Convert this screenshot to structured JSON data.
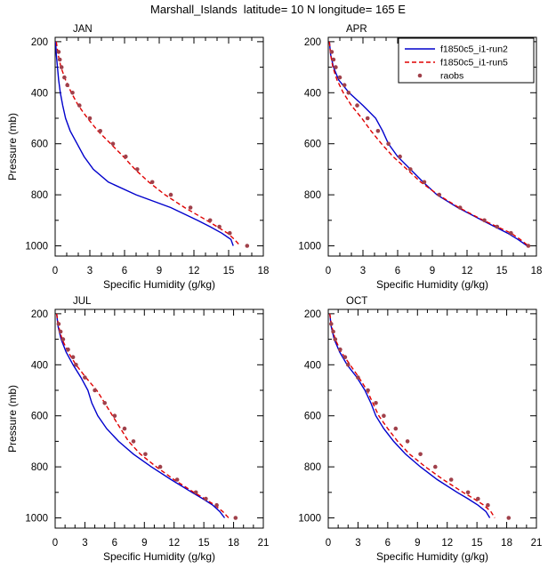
{
  "title": "Marshall_Islands  latitude= 10 N longitude= 165 E",
  "colors": {
    "run2": "#0000cc",
    "run5": "#e00000",
    "raobs": "#a0404a",
    "axis": "#000000"
  },
  "legend": {
    "panel": "APR",
    "entries": [
      {
        "label": "f1850c5_i1-run2",
        "style": "solid",
        "color": "#0000cc"
      },
      {
        "label": "f1850c5_i1-run5",
        "style": "dashed",
        "color": "#e00000"
      },
      {
        "label": "raobs",
        "style": "dots",
        "color": "#a0404a"
      }
    ]
  },
  "chart_data": [
    {
      "type": "line",
      "panel": "JAN",
      "xlabel": "Specific Humidity (g/kg)",
      "ylabel": "Pressure (mb)",
      "xlim": [
        0,
        18
      ],
      "xticks": [
        0,
        3,
        6,
        9,
        12,
        15,
        18
      ],
      "ylim": [
        200,
        1000
      ],
      "yticks": [
        200,
        400,
        600,
        800,
        1000
      ],
      "y_axis": "inverted-pressure",
      "series": [
        {
          "name": "f1850c5_i1-run2",
          "style": "solid",
          "color": "#0000cc",
          "pressure": [
            200,
            250,
            300,
            350,
            400,
            450,
            500,
            550,
            600,
            650,
            700,
            750,
            800,
            850,
            900,
            925,
            950,
            975,
            1000
          ],
          "values": [
            0.05,
            0.1,
            0.2,
            0.3,
            0.45,
            0.65,
            0.9,
            1.3,
            1.9,
            2.5,
            3.3,
            4.6,
            7.0,
            10.0,
            12.3,
            13.4,
            14.4,
            15.2,
            15.4
          ]
        },
        {
          "name": "f1850c5_i1-run5",
          "style": "dashed",
          "color": "#e00000",
          "pressure": [
            200,
            250,
            300,
            350,
            400,
            450,
            500,
            550,
            600,
            650,
            700,
            750,
            800,
            850,
            900,
            925,
            950,
            975,
            1000
          ],
          "values": [
            0.1,
            0.25,
            0.5,
            0.9,
            1.4,
            2.0,
            2.8,
            3.7,
            4.8,
            5.9,
            6.9,
            8.1,
            9.5,
            11.2,
            13.1,
            14.0,
            14.9,
            15.5,
            16.0
          ]
        },
        {
          "name": "raobs",
          "style": "dots",
          "color": "#a0404a",
          "pressure": [
            240,
            270,
            300,
            340,
            370,
            400,
            450,
            500,
            550,
            600,
            650,
            700,
            750,
            800,
            850,
            900,
            925,
            950,
            1000
          ],
          "values": [
            0.3,
            0.4,
            0.55,
            0.8,
            1.05,
            1.5,
            2.1,
            3.0,
            3.9,
            5.0,
            6.1,
            7.1,
            8.4,
            10.0,
            11.7,
            13.4,
            14.2,
            15.1,
            16.6
          ]
        }
      ]
    },
    {
      "type": "line",
      "panel": "APR",
      "xlabel": "Specific Humidity (g/kg)",
      "ylabel": "Pressure (mb)",
      "xlim": [
        0,
        18
      ],
      "xticks": [
        0,
        3,
        6,
        9,
        12,
        15,
        18
      ],
      "ylim": [
        200,
        1000
      ],
      "yticks": [
        200,
        400,
        600,
        800,
        1000
      ],
      "y_axis": "inverted-pressure",
      "series": [
        {
          "name": "f1850c5_i1-run2",
          "style": "solid",
          "color": "#0000cc",
          "pressure": [
            200,
            250,
            300,
            350,
            400,
            450,
            500,
            550,
            600,
            650,
            700,
            750,
            800,
            850,
            900,
            925,
            950,
            975,
            1000
          ],
          "values": [
            0.1,
            0.2,
            0.45,
            0.9,
            1.8,
            3.0,
            4.1,
            4.7,
            5.2,
            6.0,
            7.1,
            8.2,
            9.4,
            11.2,
            13.3,
            14.4,
            15.5,
            16.4,
            17.2
          ]
        },
        {
          "name": "f1850c5_i1-run5",
          "style": "dashed",
          "color": "#e00000",
          "pressure": [
            200,
            250,
            300,
            350,
            400,
            450,
            500,
            550,
            600,
            650,
            700,
            750,
            800,
            850,
            900,
            925,
            950,
            975,
            1000
          ],
          "values": [
            0.1,
            0.2,
            0.4,
            0.75,
            1.3,
            2.0,
            2.9,
            3.7,
            4.6,
            5.6,
            6.8,
            8.0,
            9.5,
            11.3,
            13.4,
            14.6,
            15.8,
            16.6,
            17.3
          ]
        },
        {
          "name": "raobs",
          "style": "dots",
          "color": "#a0404a",
          "pressure": [
            240,
            270,
            300,
            340,
            370,
            400,
            450,
            500,
            550,
            600,
            650,
            700,
            750,
            800,
            850,
            900,
            925,
            950,
            1000
          ],
          "values": [
            0.3,
            0.45,
            0.65,
            1.0,
            1.4,
            1.75,
            2.5,
            3.4,
            4.3,
            5.2,
            6.2,
            7.1,
            8.3,
            9.6,
            11.4,
            13.5,
            14.6,
            15.8,
            17.3
          ]
        }
      ]
    },
    {
      "type": "line",
      "panel": "JUL",
      "xlabel": "Specific Humidity (g/kg)",
      "ylabel": "Pressure (mb)",
      "xlim": [
        0,
        21
      ],
      "xticks": [
        0,
        3,
        6,
        9,
        12,
        15,
        18,
        21
      ],
      "ylim": [
        200,
        1000
      ],
      "yticks": [
        200,
        400,
        600,
        800,
        1000
      ],
      "y_axis": "inverted-pressure",
      "series": [
        {
          "name": "f1850c5_i1-run2",
          "style": "solid",
          "color": "#0000cc",
          "pressure": [
            200,
            250,
            300,
            350,
            400,
            450,
            500,
            550,
            600,
            650,
            700,
            750,
            800,
            850,
            900,
            925,
            950,
            975,
            1000
          ],
          "values": [
            0.15,
            0.3,
            0.6,
            1.1,
            1.8,
            2.6,
            3.3,
            3.7,
            4.3,
            5.2,
            6.4,
            7.9,
            9.7,
            11.7,
            13.8,
            14.9,
            15.9,
            16.6,
            17.1
          ]
        },
        {
          "name": "f1850c5_i1-run5",
          "style": "dashed",
          "color": "#e00000",
          "pressure": [
            200,
            250,
            300,
            350,
            400,
            450,
            500,
            550,
            600,
            650,
            700,
            750,
            800,
            850,
            900,
            925,
            950,
            975,
            1000
          ],
          "values": [
            0.15,
            0.35,
            0.7,
            1.3,
            2.1,
            3.1,
            4.2,
            5.0,
            5.8,
            6.6,
            7.4,
            8.6,
            10.2,
            12.0,
            14.0,
            15.1,
            16.1,
            16.9,
            17.5
          ]
        },
        {
          "name": "raobs",
          "style": "dots",
          "color": "#a0404a",
          "pressure": [
            240,
            270,
            300,
            340,
            370,
            400,
            450,
            500,
            550,
            600,
            650,
            700,
            750,
            800,
            850,
            900,
            925,
            950,
            1000
          ],
          "values": [
            0.35,
            0.55,
            0.8,
            1.3,
            1.8,
            2.1,
            3.0,
            4.0,
            5.0,
            6.0,
            7.0,
            7.9,
            9.1,
            10.6,
            12.3,
            14.2,
            15.2,
            16.3,
            18.2
          ]
        }
      ]
    },
    {
      "type": "line",
      "panel": "OCT",
      "xlabel": "Specific Humidity (g/kg)",
      "ylabel": "Pressure (mb)",
      "xlim": [
        0,
        21
      ],
      "xticks": [
        0,
        3,
        6,
        9,
        12,
        15,
        18,
        21
      ],
      "ylim": [
        200,
        1000
      ],
      "yticks": [
        200,
        400,
        600,
        800,
        1000
      ],
      "y_axis": "inverted-pressure",
      "series": [
        {
          "name": "f1850c5_i1-run2",
          "style": "solid",
          "color": "#0000cc",
          "pressure": [
            200,
            250,
            300,
            350,
            400,
            450,
            500,
            550,
            600,
            650,
            700,
            750,
            800,
            850,
            900,
            925,
            950,
            975,
            1000
          ],
          "values": [
            0.15,
            0.3,
            0.6,
            1.15,
            1.9,
            2.9,
            3.7,
            4.3,
            4.8,
            5.6,
            6.6,
            7.8,
            9.3,
            11.0,
            13.0,
            14.1,
            15.1,
            15.9,
            16.3
          ]
        },
        {
          "name": "f1850c5_i1-run5",
          "style": "dashed",
          "color": "#e00000",
          "pressure": [
            200,
            250,
            300,
            350,
            400,
            450,
            500,
            550,
            600,
            650,
            700,
            750,
            800,
            850,
            900,
            925,
            950,
            975,
            1000
          ],
          "values": [
            0.15,
            0.35,
            0.7,
            1.3,
            2.2,
            3.1,
            3.9,
            4.5,
            5.1,
            6.0,
            7.0,
            8.2,
            9.8,
            11.6,
            13.6,
            14.7,
            15.7,
            16.4,
            16.8
          ]
        },
        {
          "name": "raobs",
          "style": "dots",
          "color": "#a0404a",
          "pressure": [
            240,
            270,
            300,
            340,
            370,
            400,
            450,
            500,
            550,
            600,
            650,
            700,
            750,
            800,
            850,
            900,
            925,
            950,
            1000
          ],
          "values": [
            0.3,
            0.5,
            0.7,
            1.2,
            1.7,
            2.0,
            3.0,
            4.0,
            4.8,
            5.6,
            6.8,
            8.0,
            9.3,
            10.8,
            12.4,
            14.1,
            15.1,
            16.1,
            18.2
          ]
        }
      ]
    }
  ]
}
